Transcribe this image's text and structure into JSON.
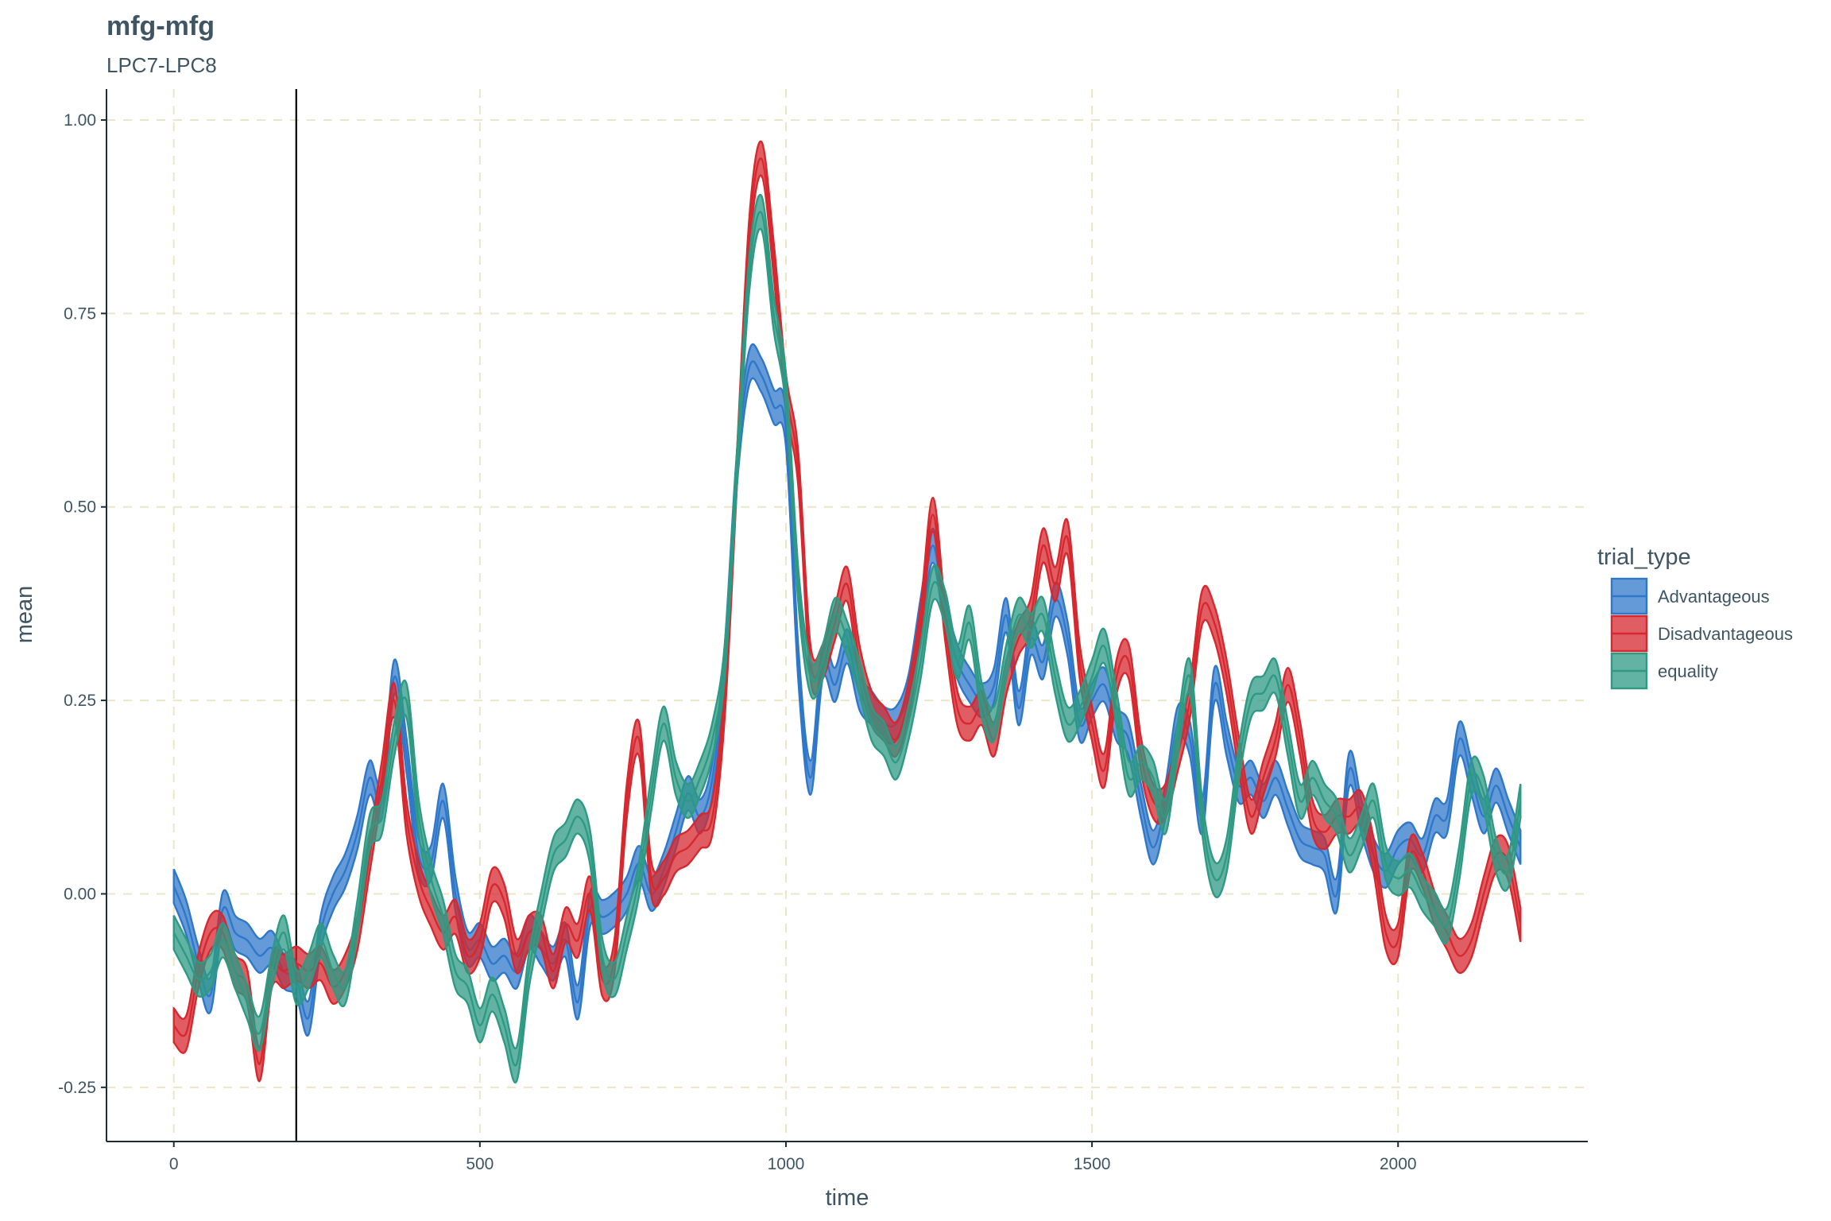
{
  "chart_data": {
    "type": "area",
    "title": "mfg-mfg",
    "subtitle": "LPC7-LPC8",
    "xlabel": "time",
    "ylabel": "mean",
    "xlim": [
      -110,
      2310
    ],
    "ylim": [
      -0.32,
      1.04
    ],
    "x_ticks": [
      0,
      500,
      1000,
      1500,
      2000
    ],
    "x_tick_labels": [
      "0",
      "500",
      "1000",
      "1500",
      "2000"
    ],
    "y_ticks": [
      -0.25,
      0,
      0.25,
      0.5,
      0.75,
      1.0
    ],
    "y_tick_labels": [
      "-0.25",
      "0.00",
      "0.25",
      "0.50",
      "0.75",
      "1.00"
    ],
    "grid": true,
    "vline_x": 200,
    "legend": {
      "title": "trial_type",
      "position": "right"
    },
    "series": [
      {
        "name": "Advantageous",
        "color": "#2f78c9",
        "x": [
          0,
          20,
          40,
          60,
          80,
          100,
          120,
          140,
          160,
          180,
          200,
          220,
          240,
          260,
          280,
          300,
          320,
          340,
          360,
          380,
          400,
          420,
          440,
          460,
          480,
          500,
          520,
          540,
          560,
          580,
          600,
          620,
          640,
          660,
          680,
          700,
          720,
          740,
          760,
          780,
          800,
          820,
          840,
          860,
          880,
          900,
          920,
          940,
          960,
          980,
          1000,
          1020,
          1040,
          1060,
          1080,
          1100,
          1120,
          1140,
          1160,
          1180,
          1200,
          1220,
          1240,
          1260,
          1280,
          1300,
          1320,
          1340,
          1360,
          1380,
          1400,
          1420,
          1440,
          1460,
          1480,
          1500,
          1520,
          1540,
          1560,
          1580,
          1600,
          1620,
          1640,
          1660,
          1680,
          1700,
          1720,
          1740,
          1760,
          1780,
          1800,
          1820,
          1840,
          1860,
          1880,
          1900,
          1920,
          1940,
          1960,
          1980,
          2000,
          2020,
          2040,
          2060,
          2080,
          2100,
          2120,
          2140,
          2160,
          2180,
          2200
        ],
        "mean": [
          0.01,
          -0.03,
          -0.09,
          -0.13,
          -0.02,
          -0.05,
          -0.06,
          -0.08,
          -0.07,
          -0.1,
          -0.11,
          -0.16,
          -0.05,
          0.0,
          0.03,
          0.08,
          0.15,
          0.12,
          0.28,
          0.18,
          0.05,
          0.04,
          0.12,
          0.0,
          -0.07,
          -0.06,
          -0.09,
          -0.08,
          -0.1,
          -0.05,
          -0.07,
          -0.09,
          -0.06,
          -0.14,
          -0.02,
          -0.03,
          -0.02,
          0.0,
          0.04,
          0.0,
          0.03,
          0.08,
          0.13,
          0.1,
          0.15,
          0.3,
          0.55,
          0.68,
          0.67,
          0.63,
          0.6,
          0.3,
          0.15,
          0.3,
          0.27,
          0.32,
          0.26,
          0.24,
          0.22,
          0.22,
          0.26,
          0.36,
          0.45,
          0.36,
          0.3,
          0.27,
          0.25,
          0.27,
          0.36,
          0.24,
          0.33,
          0.3,
          0.38,
          0.33,
          0.22,
          0.25,
          0.27,
          0.22,
          0.2,
          0.12,
          0.06,
          0.12,
          0.22,
          0.2,
          0.1,
          0.27,
          0.2,
          0.14,
          0.15,
          0.12,
          0.15,
          0.11,
          0.07,
          0.06,
          0.05,
          0.0,
          0.16,
          0.1,
          0.05,
          0.03,
          0.06,
          0.07,
          0.05,
          0.1,
          0.1,
          0.2,
          0.15,
          0.1,
          0.14,
          0.1,
          0.06
        ],
        "halfwidth": 0.022
      },
      {
        "name": "Disadvantageous",
        "color": "#d6282f",
        "x": [
          0,
          20,
          40,
          60,
          80,
          100,
          120,
          140,
          160,
          180,
          200,
          220,
          240,
          260,
          280,
          300,
          320,
          340,
          360,
          380,
          400,
          420,
          440,
          460,
          480,
          500,
          520,
          540,
          560,
          580,
          600,
          620,
          640,
          660,
          680,
          700,
          720,
          740,
          760,
          780,
          800,
          820,
          840,
          860,
          880,
          900,
          920,
          940,
          960,
          980,
          1000,
          1020,
          1040,
          1060,
          1080,
          1100,
          1120,
          1140,
          1160,
          1180,
          1200,
          1220,
          1240,
          1260,
          1280,
          1300,
          1320,
          1340,
          1360,
          1380,
          1400,
          1420,
          1440,
          1460,
          1480,
          1500,
          1520,
          1540,
          1560,
          1580,
          1600,
          1620,
          1640,
          1660,
          1680,
          1700,
          1720,
          1740,
          1760,
          1780,
          1800,
          1820,
          1840,
          1860,
          1880,
          1900,
          1920,
          1940,
          1960,
          1980,
          2000,
          2020,
          2040,
          2060,
          2080,
          2100,
          2120,
          2140,
          2160,
          2180,
          2200
        ],
        "mean": [
          -0.17,
          -0.18,
          -0.1,
          -0.05,
          -0.05,
          -0.1,
          -0.12,
          -0.22,
          -0.1,
          -0.1,
          -0.09,
          -0.1,
          -0.09,
          -0.12,
          -0.1,
          -0.05,
          0.05,
          0.15,
          0.25,
          0.1,
          0.02,
          -0.02,
          -0.05,
          -0.03,
          -0.08,
          -0.06,
          0.01,
          -0.01,
          -0.08,
          -0.05,
          -0.05,
          -0.1,
          -0.04,
          -0.06,
          0.0,
          -0.11,
          -0.08,
          0.12,
          0.2,
          0.02,
          0.02,
          0.05,
          0.06,
          0.08,
          0.1,
          0.25,
          0.55,
          0.85,
          0.95,
          0.82,
          0.65,
          0.55,
          0.3,
          0.3,
          0.35,
          0.4,
          0.3,
          0.24,
          0.22,
          0.2,
          0.25,
          0.35,
          0.49,
          0.35,
          0.24,
          0.22,
          0.24,
          0.2,
          0.28,
          0.33,
          0.36,
          0.45,
          0.4,
          0.46,
          0.3,
          0.22,
          0.16,
          0.28,
          0.3,
          0.18,
          0.12,
          0.12,
          0.18,
          0.25,
          0.37,
          0.35,
          0.28,
          0.18,
          0.1,
          0.15,
          0.2,
          0.27,
          0.2,
          0.1,
          0.08,
          0.1,
          0.1,
          0.11,
          0.05,
          -0.05,
          -0.06,
          0.05,
          0.03,
          -0.02,
          -0.05,
          -0.08,
          -0.06,
          0.0,
          0.05,
          0.04,
          -0.04
        ],
        "halfwidth": 0.022
      },
      {
        "name": "equality",
        "color": "#2e9a84",
        "x": [
          0,
          20,
          40,
          60,
          80,
          100,
          120,
          140,
          160,
          180,
          200,
          220,
          240,
          260,
          280,
          300,
          320,
          340,
          360,
          380,
          400,
          420,
          440,
          460,
          480,
          500,
          520,
          540,
          560,
          580,
          600,
          620,
          640,
          660,
          680,
          700,
          720,
          740,
          760,
          780,
          800,
          820,
          840,
          860,
          880,
          900,
          920,
          940,
          960,
          980,
          1000,
          1020,
          1040,
          1060,
          1080,
          1100,
          1120,
          1140,
          1160,
          1180,
          1200,
          1220,
          1240,
          1260,
          1280,
          1300,
          1320,
          1340,
          1360,
          1380,
          1400,
          1420,
          1440,
          1460,
          1480,
          1500,
          1520,
          1540,
          1560,
          1580,
          1600,
          1620,
          1640,
          1660,
          1680,
          1700,
          1720,
          1740,
          1760,
          1780,
          1800,
          1820,
          1840,
          1860,
          1880,
          1900,
          1920,
          1940,
          1960,
          1980,
          2000,
          2020,
          2040,
          2060,
          2080,
          2100,
          2120,
          2140,
          2160,
          2180,
          2200
        ],
        "mean": [
          -0.05,
          -0.08,
          -0.11,
          -0.1,
          -0.06,
          -0.1,
          -0.14,
          -0.18,
          -0.1,
          -0.05,
          -0.12,
          -0.1,
          -0.06,
          -0.1,
          -0.12,
          -0.03,
          0.08,
          0.1,
          0.2,
          0.25,
          0.1,
          0.02,
          -0.03,
          -0.1,
          -0.12,
          -0.17,
          -0.13,
          -0.17,
          -0.22,
          -0.1,
          -0.02,
          0.05,
          0.07,
          0.1,
          0.06,
          -0.08,
          -0.11,
          -0.05,
          0.02,
          0.13,
          0.22,
          0.15,
          0.12,
          0.15,
          0.2,
          0.3,
          0.55,
          0.8,
          0.88,
          0.75,
          0.65,
          0.4,
          0.28,
          0.3,
          0.36,
          0.33,
          0.28,
          0.22,
          0.2,
          0.17,
          0.22,
          0.3,
          0.4,
          0.37,
          0.3,
          0.35,
          0.25,
          0.22,
          0.3,
          0.36,
          0.34,
          0.36,
          0.28,
          0.22,
          0.24,
          0.28,
          0.32,
          0.24,
          0.15,
          0.17,
          0.15,
          0.1,
          0.2,
          0.28,
          0.1,
          0.02,
          0.05,
          0.17,
          0.25,
          0.26,
          0.28,
          0.2,
          0.12,
          0.15,
          0.12,
          0.1,
          0.05,
          0.08,
          0.12,
          0.04,
          0.02,
          0.03,
          0.0,
          -0.02,
          -0.04,
          0.04,
          0.15,
          0.13,
          0.05,
          0.03,
          0.12
        ],
        "halfwidth": 0.022
      }
    ]
  }
}
